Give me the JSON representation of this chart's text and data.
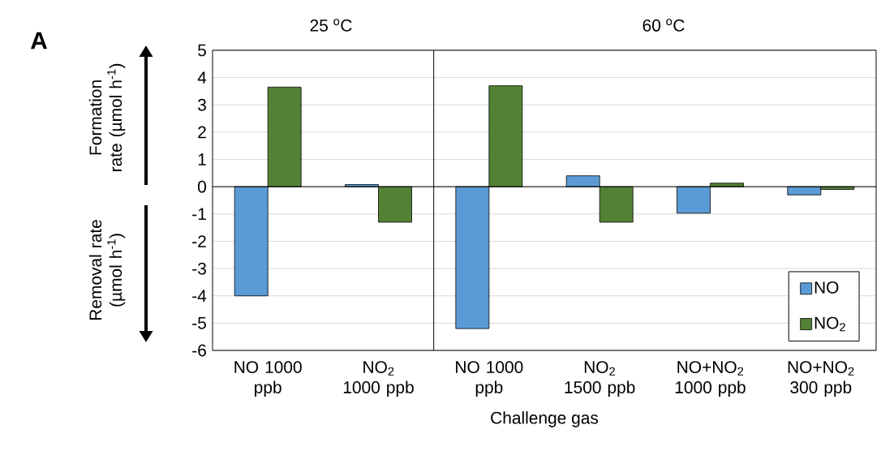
{
  "chart_data": {
    "type": "bar",
    "categories": [
      "NO 1000 ppb",
      "NO$_{2}$ 1000 ppb",
      "NO 1000 ppb",
      "NO$_{2}$ 1500 ppb",
      "NO+NO$_{2}$ 1000 ppb",
      "NO+NO$_{2}$ 300 ppb"
    ],
    "series": [
      {
        "name": "NO",
        "color": "#5b9bd5",
        "values": [
          -4.0,
          0.08,
          -5.2,
          0.4,
          -0.97,
          -0.3
        ]
      },
      {
        "name": "NO$_{2}$",
        "color": "#548235",
        "values": [
          3.65,
          -1.3,
          3.7,
          -1.3,
          0.13,
          -0.1
        ]
      }
    ],
    "xlabel": "Challenge gas",
    "annotations": [
      "A",
      "25 $^{o}$C",
      "60 $^{o}$C",
      "Formation rate (µmol h$^{-1}$)",
      "Removal rate (µmol h$^{-1}$)"
    ],
    "ylim": [
      -6,
      5
    ],
    "yticks": [
      -6,
      -5,
      -4,
      -3,
      -2,
      -1,
      0,
      1,
      2,
      3,
      4,
      5
    ],
    "grid": "y",
    "legend": "bottom right"
  }
}
